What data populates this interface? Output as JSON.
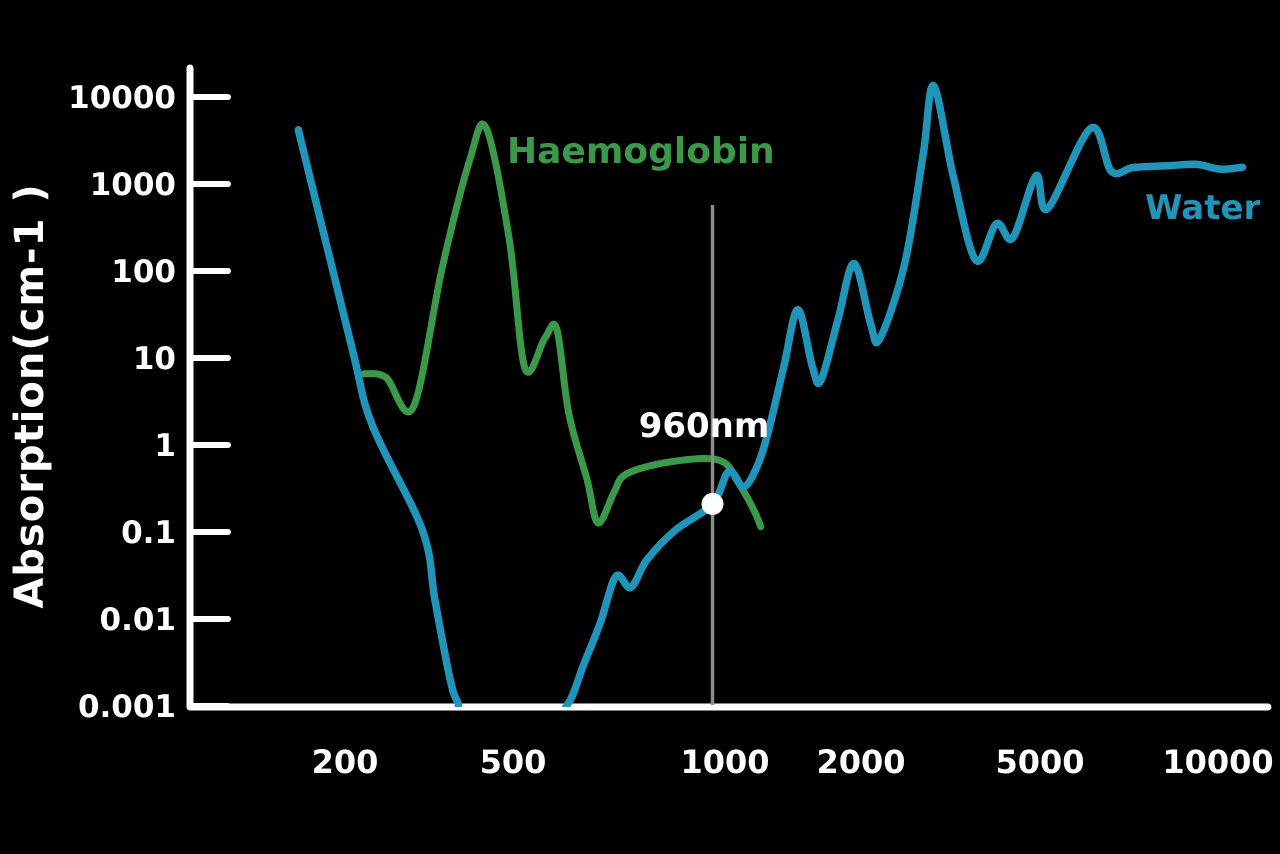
{
  "chart_data": {
    "type": "line",
    "title": "",
    "x_axis": {
      "label": "",
      "unit": "nm",
      "scale": "log",
      "ticks": [
        200,
        500,
        1000,
        2000,
        5000,
        10000
      ],
      "range": [
        100,
        12000
      ]
    },
    "y_axis": {
      "label": "Absorption(cm-1 )",
      "scale": "log",
      "ticks": [
        10000,
        1000,
        100,
        10,
        1,
        0.1,
        0.01,
        0.001
      ],
      "range": [
        0.001,
        20000
      ]
    },
    "series": [
      {
        "name": "Water",
        "color": "#2194ba",
        "points": [
          [
            155,
            4200
          ],
          [
            207,
            14
          ],
          [
            232,
            1.7
          ],
          [
            305,
            0.105
          ],
          [
            327,
            0.016
          ],
          [
            355,
            0.002
          ],
          [
            370,
            0.0011
          ],
          [
            390,
            0.00075
          ],
          [
            560,
            0.00075
          ],
          [
            600,
            0.0011
          ],
          [
            630,
            0.003
          ],
          [
            665,
            0.009
          ],
          [
            700,
            0.031
          ],
          [
            735,
            0.023
          ],
          [
            775,
            0.048
          ],
          [
            850,
            0.105
          ],
          [
            960,
            0.21
          ],
          [
            1020,
            0.5
          ],
          [
            1100,
            0.33
          ],
          [
            1180,
            0.58
          ],
          [
            1250,
            1.5
          ],
          [
            1350,
            8
          ],
          [
            1450,
            36
          ],
          [
            1560,
            8
          ],
          [
            1630,
            5.5
          ],
          [
            1780,
            28
          ],
          [
            1930,
            122
          ],
          [
            2100,
            25
          ],
          [
            2200,
            16.5
          ],
          [
            2500,
            120
          ],
          [
            2750,
            2200
          ],
          [
            2900,
            13500
          ],
          [
            3200,
            1300
          ],
          [
            3600,
            133
          ],
          [
            4000,
            350
          ],
          [
            4350,
            240
          ],
          [
            4900,
            1250
          ],
          [
            5150,
            520
          ],
          [
            6100,
            4400
          ],
          [
            6600,
            1400
          ],
          [
            7200,
            1550
          ],
          [
            8200,
            1620
          ],
          [
            9200,
            1680
          ],
          [
            10100,
            1480
          ],
          [
            11000,
            1560
          ]
        ]
      },
      {
        "name": "Haemoglobin",
        "color": "#3a9a4a",
        "points": [
          [
            222,
            6.6
          ],
          [
            250,
            6.0
          ],
          [
            290,
            2.7
          ],
          [
            340,
            110
          ],
          [
            395,
            1900
          ],
          [
            432,
            4400
          ],
          [
            490,
            230
          ],
          [
            520,
            7.6
          ],
          [
            555,
            17
          ],
          [
            577,
            21.5
          ],
          [
            600,
            2.3
          ],
          [
            637,
            0.4
          ],
          [
            660,
            0.127
          ],
          [
            695,
            0.28
          ],
          [
            720,
            0.45
          ],
          [
            800,
            0.6
          ],
          [
            930,
            0.7
          ],
          [
            1000,
            0.62
          ],
          [
            1060,
            0.4
          ],
          [
            1120,
            0.25
          ],
          [
            1170,
            0.16
          ],
          [
            1200,
            0.115
          ]
        ]
      }
    ],
    "annotation": {
      "label": "960nm",
      "wavelength": 960,
      "marker_value": 0.21,
      "line_color": "#8c8c8c",
      "marker_color": "#ffffff"
    },
    "axis_color": "#ffffff",
    "background_color": "#000000",
    "grid": false,
    "legend_position": "inline-curve-labels"
  }
}
